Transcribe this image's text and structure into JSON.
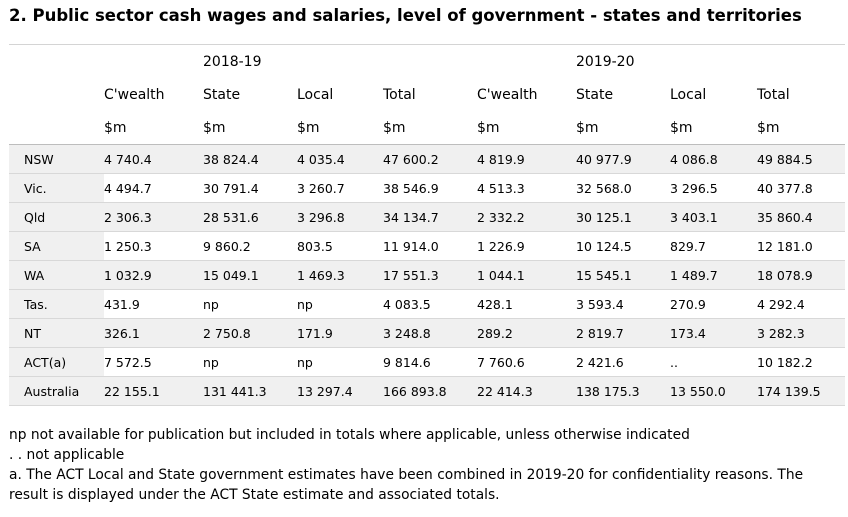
{
  "title": "2. Public sector cash wages and salaries, level of government - states and territories",
  "table": {
    "years": [
      "2018-19",
      "2019-20"
    ],
    "columns": [
      "C'wealth",
      "State",
      "Local",
      "Total",
      "C'wealth",
      "State",
      "Local",
      "Total"
    ],
    "units": [
      "$m",
      "$m",
      "$m",
      "$m",
      "$m",
      "$m",
      "$m",
      "$m"
    ],
    "rows": [
      {
        "label": "NSW",
        "values": [
          "4 740.4",
          "38 824.4",
          "4 035.4",
          "47 600.2",
          "4 819.9",
          "40 977.9",
          "4 086.8",
          "49 884.5"
        ]
      },
      {
        "label": "Vic.",
        "values": [
          "4 494.7",
          "30 791.4",
          "3 260.7",
          "38 546.9",
          "4 513.3",
          "32 568.0",
          "3 296.5",
          "40 377.8"
        ]
      },
      {
        "label": "Qld",
        "values": [
          "2 306.3",
          "28 531.6",
          "3 296.8",
          "34 134.7",
          "2 332.2",
          "30 125.1",
          "3 403.1",
          "35 860.4"
        ]
      },
      {
        "label": "SA",
        "values": [
          "1 250.3",
          "9 860.2",
          "803.5",
          "11 914.0",
          "1 226.9",
          "10 124.5",
          "829.7",
          "12 181.0"
        ]
      },
      {
        "label": "WA",
        "values": [
          "1 032.9",
          "15 049.1",
          "1 469.3",
          "17 551.3",
          "1 044.1",
          "15 545.1",
          "1 489.7",
          "18 078.9"
        ]
      },
      {
        "label": "Tas.",
        "values": [
          "431.9",
          "np",
          "np",
          "4 083.5",
          "428.1",
          "3 593.4",
          "270.9",
          "4 292.4"
        ]
      },
      {
        "label": "NT",
        "values": [
          "326.1",
          "2 750.8",
          "171.9",
          "3 248.8",
          "289.2",
          "2 819.7",
          "173.4",
          "3 282.3"
        ]
      },
      {
        "label": "ACT(a)",
        "values": [
          "7 572.5",
          "np",
          "np",
          "9 814.6",
          "7 760.6",
          "2 421.6",
          "..",
          "10 182.2"
        ]
      },
      {
        "label": "Australia",
        "values": [
          "22 155.1",
          "131 441.3",
          "13 297.4",
          "166 893.8",
          "22 414.3",
          "138 175.3",
          "13 550.0",
          "174 139.5"
        ]
      }
    ]
  },
  "notes": [
    "np not available for publication but included in totals where applicable, unless otherwise indicated",
    ". . not applicable",
    "a. The ACT Local and State government estimates have been combined in 2019-20 for confidentiality reasons. The result is displayed under the ACT State estimate and associated totals."
  ]
}
